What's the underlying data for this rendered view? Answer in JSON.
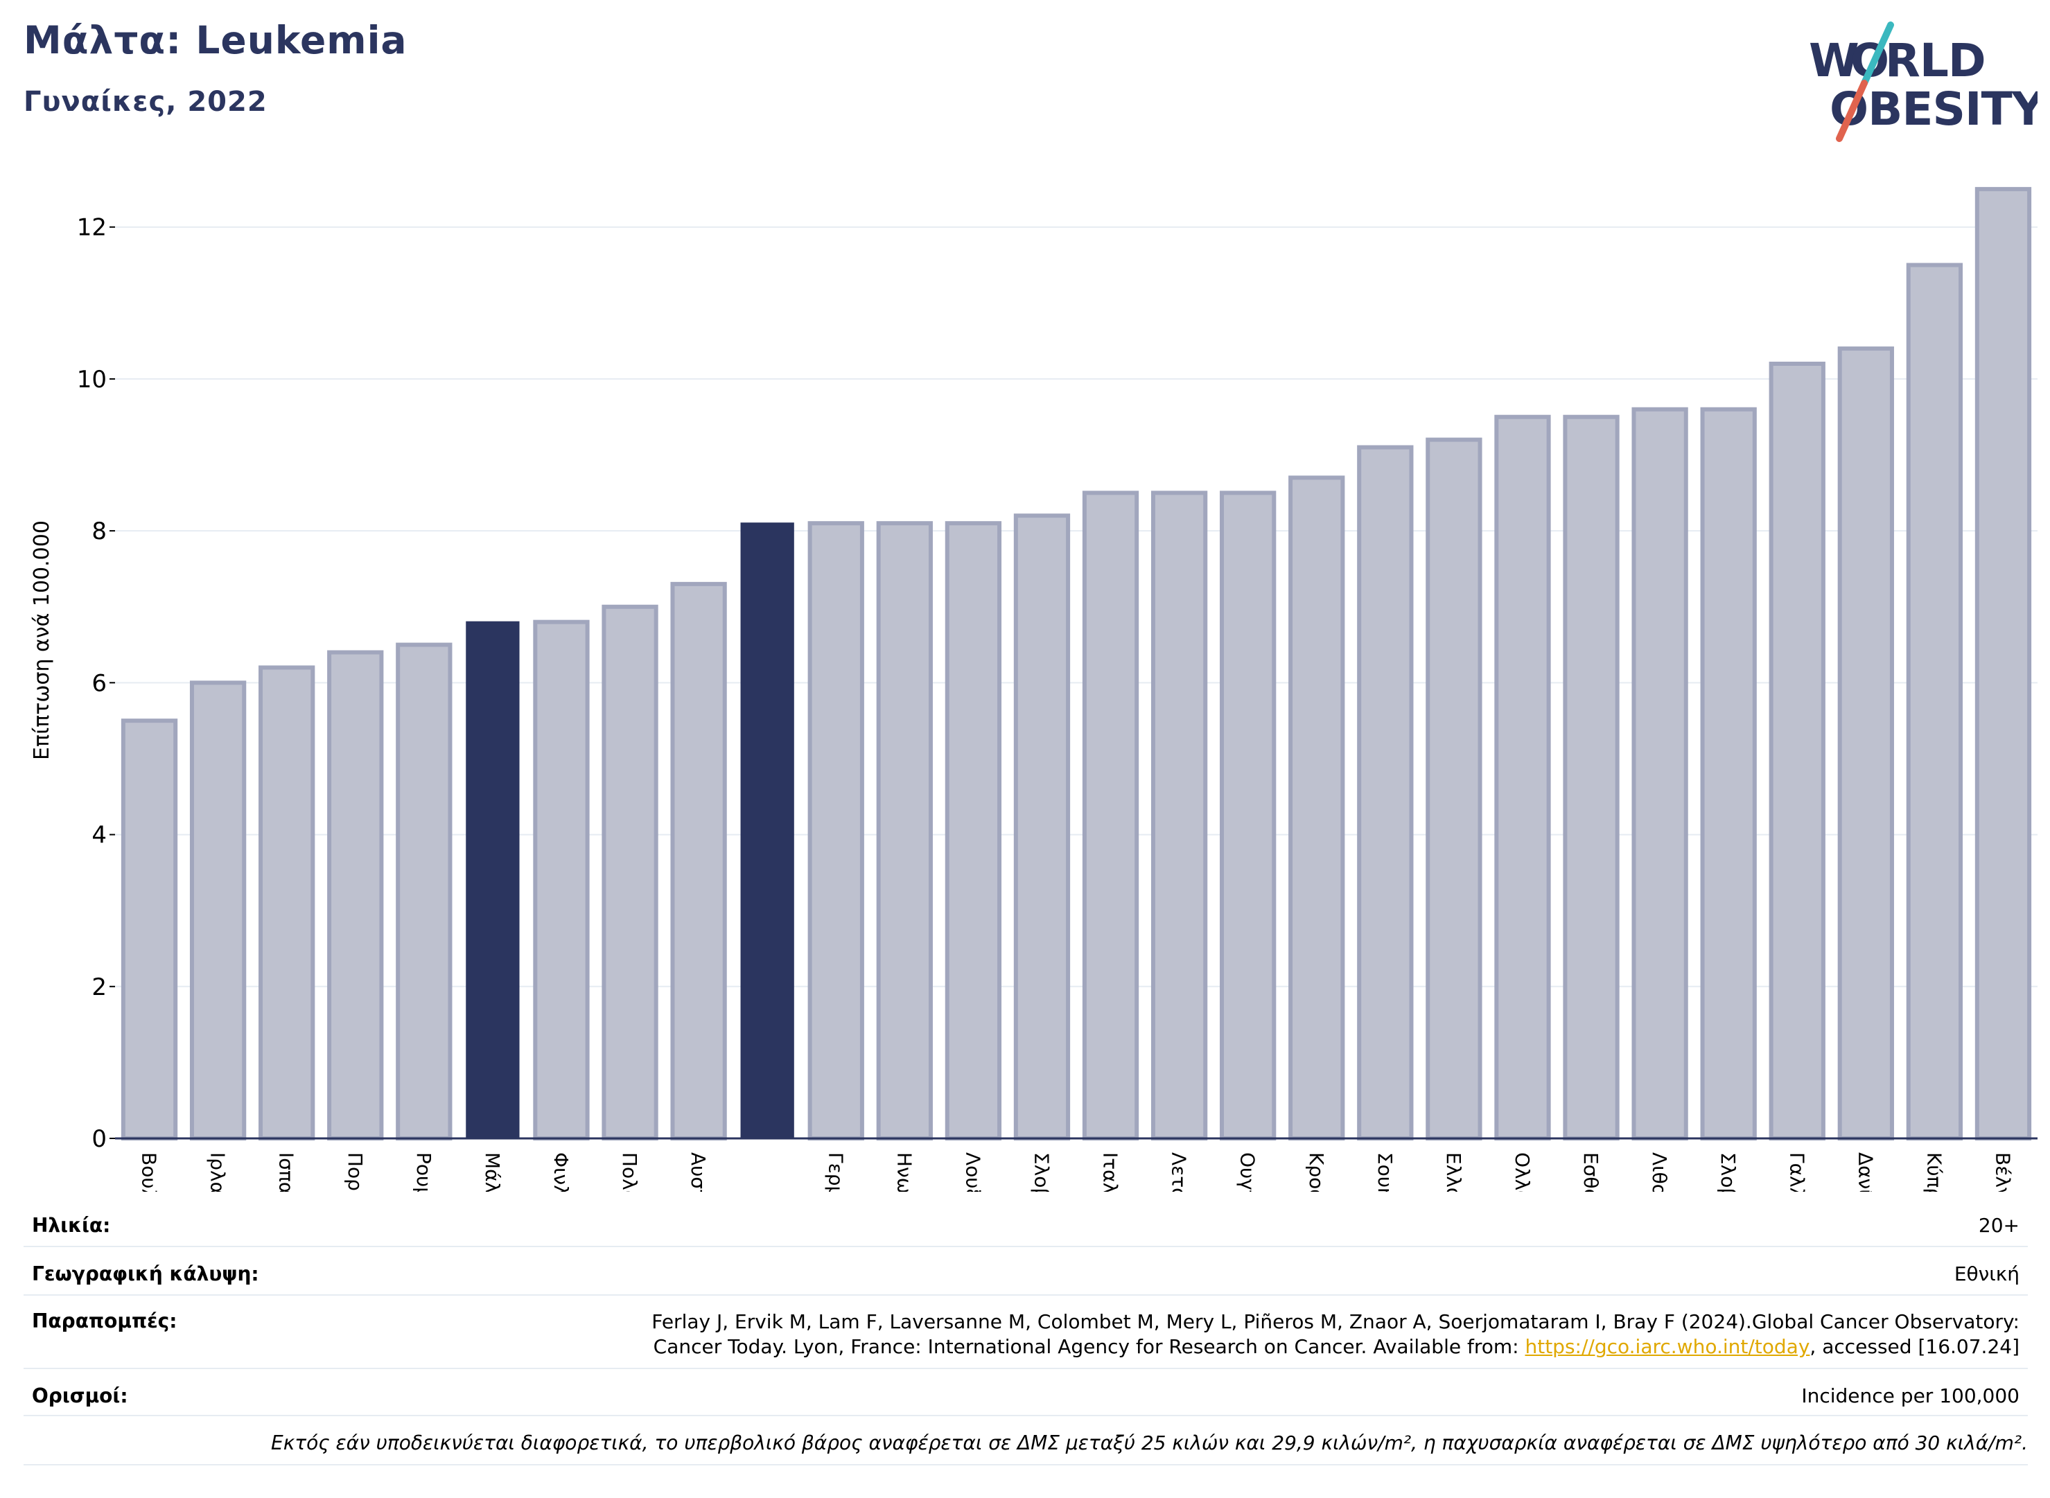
{
  "header": {
    "title": "Μάλτα: Leukemia",
    "subtitle": "Γυναίκες, 2022"
  },
  "logo": {
    "line1": "W RLD",
    "line2": "OBESITY",
    "accent_teal": "#3bb8bf",
    "accent_red": "#e0634e"
  },
  "colors": {
    "bar": "#bec1cf",
    "bar_border": "#a1a6bd",
    "highlight": "#2b355f",
    "axis_text": "#000000",
    "grid": "#e6ecf2"
  },
  "chart_data": {
    "type": "bar",
    "title": "Μάλτα: Leukemia",
    "subtitle": "Γυναίκες, 2022",
    "xlabel": "",
    "ylabel": "Επίπτωση ανά 100.000",
    "ylim": [
      0,
      12.8
    ],
    "yticks": [
      0,
      2,
      4,
      6,
      8,
      10,
      12
    ],
    "grid": true,
    "categories": [
      "Βουλγαρία",
      "Ιρλανδία",
      "Ισπανία",
      "Πορτογαλία",
      "Ρουμανία",
      "Μάλτα",
      "Φινλανδία",
      "Πολωνία",
      "Αυστρία",
      "",
      "Γερμανία",
      "Ηνωμένο Βασίλειο",
      "Λουξεμβούργο",
      "Σλοβακία",
      "Ιταλία",
      "Λετονία",
      "Ουγγαρία",
      "Κροατία",
      "Σουηδία",
      "Ελλάδα",
      "Ολλανδία",
      "Εσθονία",
      "Λιθουανία",
      "Σλοβενία",
      "Γαλλία",
      "Δανία",
      "Κύπρος",
      "Βέλγιο"
    ],
    "values": [
      5.5,
      6.0,
      6.2,
      6.4,
      6.5,
      6.8,
      6.8,
      7.0,
      7.3,
      8.1,
      8.1,
      8.1,
      8.1,
      8.2,
      8.5,
      8.5,
      8.5,
      8.7,
      9.1,
      9.2,
      9.5,
      9.5,
      9.6,
      9.6,
      10.2,
      10.4,
      11.5,
      12.5
    ],
    "highlight": [
      5,
      9
    ]
  },
  "info": {
    "age_label": "Ηλικία:",
    "age_value": "20+",
    "geo_label": "Γεωγραφική κάλυψη:",
    "geo_value": "Εθνική",
    "refs_label": "Παραπομπές:",
    "refs_line1": "Ferlay J, Ervik M, Lam F, Laversanne M, Colombet M, Mery L, Piñeros M, Znaor A, Soerjomataram I, Bray F (2024).Global Cancer Observatory:",
    "refs_line2_pre": "Cancer Today. Lyon, France: International Agency for Research on Cancer. Available from: ",
    "refs_link": "https://gco.iarc.who.int/today",
    "refs_line2_post": ", accessed [16.07.24]",
    "defs_label": "Ορισμοί:",
    "defs_value": "Incidence per 100,000",
    "footnote": "Εκτός εάν υποδεικνύεται διαφορετικά, το υπερβολικό βάρος αναφέρεται σε ΔΜΣ μεταξύ 25 κιλών και 29,9 κιλών/m², η παχυσαρκία αναφέρεται σε ΔΜΣ υψηλότερο από 30 κιλά/m²."
  }
}
